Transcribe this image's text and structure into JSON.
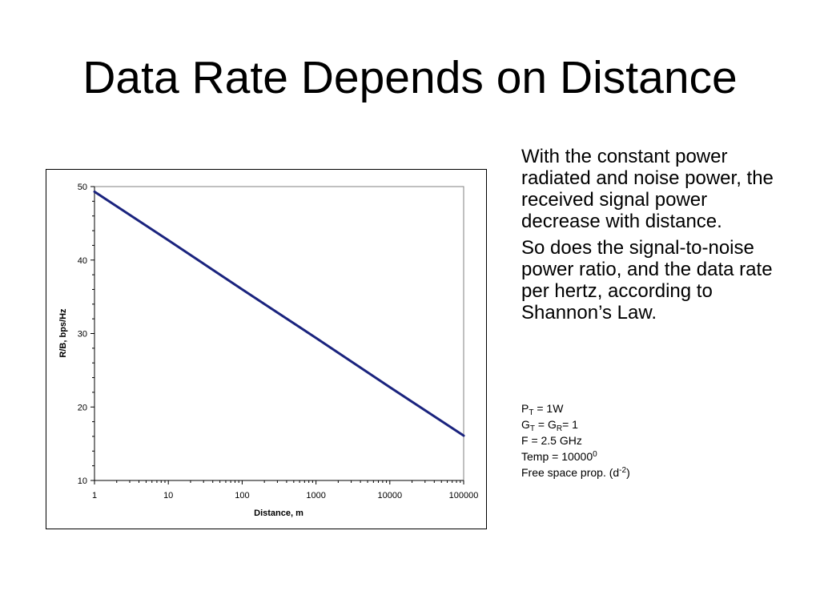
{
  "slide": {
    "title": "Data Rate Depends on Distance",
    "paragraphs": [
      "With the constant power radiated and noise power, the received signal power decrease with distance.",
      "So does the signal-to-noise power ratio, and the data rate per hertz, according to Shannon’s Law."
    ],
    "params": {
      "pt_base": "P",
      "pt_sub": "T",
      "pt_rest": " = 1W",
      "g_base1": "G",
      "g_sub1": "T",
      "g_mid": " = G",
      "g_sub2": "R",
      "g_rest": "= 1",
      "freq": "F = 2.5 GHz",
      "temp_base": "Temp = 10000",
      "temp_sup": "0",
      "prop_base": "Free space prop. (d",
      "prop_sup": "-2",
      "prop_end": ")"
    }
  },
  "chart_data": {
    "type": "line",
    "title": "",
    "xlabel": "Distance, m",
    "ylabel": "R/B, bps/Hz",
    "x_scale": "log",
    "xlim": [
      1,
      100000
    ],
    "ylim": [
      10,
      50
    ],
    "x_ticks": [
      "1",
      "10",
      "100",
      "1000",
      "10000",
      "100000"
    ],
    "y_ticks": [
      "10",
      "20",
      "30",
      "40",
      "50"
    ],
    "grid": false,
    "legend": "none",
    "line_color": "#1a237e",
    "series": [
      {
        "x": [
          1,
          10,
          100,
          1000,
          10000,
          100000
        ],
        "values": [
          49.3,
          42.7,
          36.0,
          29.4,
          22.7,
          16.1
        ]
      }
    ]
  }
}
